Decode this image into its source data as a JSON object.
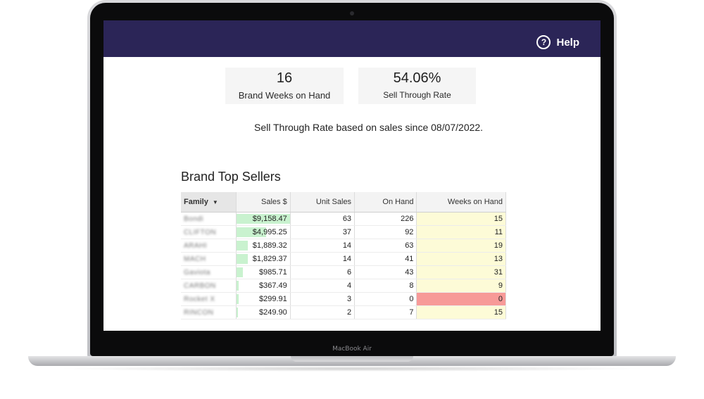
{
  "device": {
    "model_label": "MacBook Air"
  },
  "header": {
    "help_label": "Help",
    "help_icon": "question-circle-icon",
    "bg_color": "#2b2557"
  },
  "kpis": [
    {
      "value": "16",
      "label": "Brand Weeks on Hand"
    },
    {
      "value": "54.06%",
      "label": "Sell Through Rate"
    }
  ],
  "note": "Sell Through Rate based on sales since 08/07/2022.",
  "top_sellers": {
    "title": "Brand Top Sellers",
    "columns": [
      "Family",
      "Sales $",
      "Unit Sales",
      "On Hand",
      "Weeks on Hand"
    ],
    "sort_icon": "caret-down-icon",
    "colors": {
      "sales_bar": "#c9f2cf",
      "weeks_bg": "#fdfbd7",
      "weeks_alert": "#f79a98"
    },
    "rows": [
      {
        "family": "Bondi",
        "sales": "$9,158.47",
        "sales_fraction": 1.0,
        "units": "63",
        "on_hand": "226",
        "weeks": "15",
        "alert": false
      },
      {
        "family": "CLIFTON",
        "sales": "$4,995.25",
        "sales_fraction": 0.545,
        "units": "37",
        "on_hand": "92",
        "weeks": "11",
        "alert": false
      },
      {
        "family": "ARAHI",
        "sales": "$1,889.32",
        "sales_fraction": 0.206,
        "units": "14",
        "on_hand": "63",
        "weeks": "19",
        "alert": false
      },
      {
        "family": "MACH",
        "sales": "$1,829.37",
        "sales_fraction": 0.2,
        "units": "14",
        "on_hand": "41",
        "weeks": "13",
        "alert": false
      },
      {
        "family": "Gaviota",
        "sales": "$985.71",
        "sales_fraction": 0.108,
        "units": "6",
        "on_hand": "43",
        "weeks": "31",
        "alert": false
      },
      {
        "family": "CARBON",
        "sales": "$367.49",
        "sales_fraction": 0.04,
        "units": "4",
        "on_hand": "8",
        "weeks": "9",
        "alert": false
      },
      {
        "family": "Rocket X",
        "sales": "$299.91",
        "sales_fraction": 0.033,
        "units": "3",
        "on_hand": "0",
        "weeks": "0",
        "alert": true
      },
      {
        "family": "RINCON",
        "sales": "$249.90",
        "sales_fraction": 0.027,
        "units": "2",
        "on_hand": "7",
        "weeks": "15",
        "alert": false
      }
    ]
  }
}
